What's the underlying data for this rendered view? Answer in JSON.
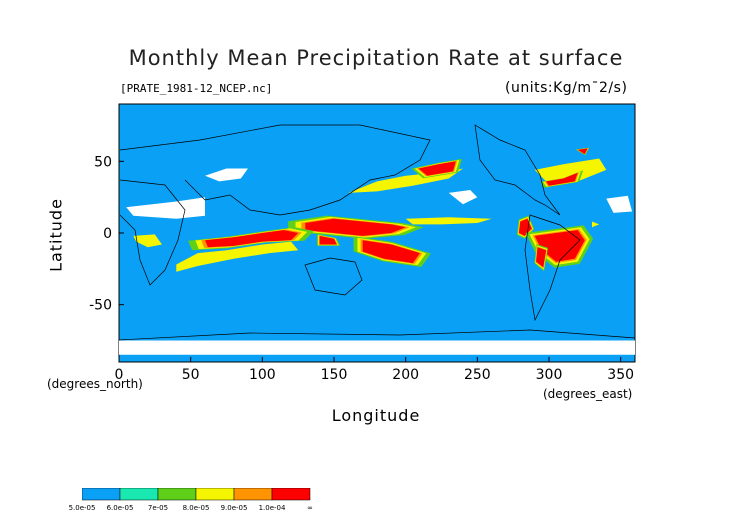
{
  "title": "Monthly Mean Precipitation Rate at surface",
  "file_label": "[PRATE_1981-12_NCEP.nc]",
  "units_label": "(units:Kg/m¯2/s)",
  "chart_data": {
    "type": "heatmap",
    "title": "Monthly Mean Precipitation Rate at surface",
    "xlabel": "Longitude",
    "ylabel": "Latitude",
    "x_units": "(degrees_east)",
    "y_units": "(degrees_north)",
    "xlim": [
      0,
      360
    ],
    "ylim": [
      -90,
      90
    ],
    "x_ticks": [
      "0",
      "50",
      "100",
      "150",
      "200",
      "250",
      "300",
      "350"
    ],
    "y_ticks": [
      "50",
      "0",
      "-50"
    ],
    "legend": {
      "labels": [
        "5.0e-05",
        "6.0e-05",
        "7e-05",
        "8.0e-05",
        "9.0e-05",
        "1.0e-04",
        "∞"
      ],
      "colors": [
        "#0aa0f5",
        "#19e8b0",
        "#5ed01a",
        "#f5f500",
        "#ff9400",
        "#ff0000"
      ]
    },
    "regions": [
      {
        "level": 5,
        "points": [
          [
            130,
            7
          ],
          [
            150,
            10
          ],
          [
            170,
            8
          ],
          [
            190,
            6
          ],
          [
            200,
            4
          ],
          [
            190,
            0
          ],
          [
            170,
            -2
          ],
          [
            150,
            0
          ],
          [
            130,
            2
          ]
        ]
      },
      {
        "level": 5,
        "points": [
          [
            170,
            -5
          ],
          [
            190,
            -8
          ],
          [
            210,
            -14
          ],
          [
            205,
            -21
          ],
          [
            185,
            -18
          ],
          [
            170,
            -13
          ]
        ]
      },
      {
        "level": 5,
        "points": [
          [
            60,
            -5
          ],
          [
            80,
            -3
          ],
          [
            100,
            0
          ],
          [
            115,
            2
          ],
          [
            125,
            0
          ],
          [
            120,
            -5
          ],
          [
            100,
            -6
          ],
          [
            80,
            -9
          ],
          [
            62,
            -10
          ]
        ]
      },
      {
        "level": 5,
        "points": [
          [
            140,
            -2
          ],
          [
            150,
            -4
          ],
          [
            152,
            -8
          ],
          [
            140,
            -8
          ]
        ]
      },
      {
        "level": 5,
        "points": [
          [
            280,
            8
          ],
          [
            285,
            10
          ],
          [
            288,
            3
          ],
          [
            283,
            -2
          ],
          [
            279,
            0
          ]
        ]
      },
      {
        "level": 5,
        "points": [
          [
            290,
            -2
          ],
          [
            305,
            0
          ],
          [
            320,
            2
          ],
          [
            325,
            -5
          ],
          [
            318,
            -18
          ],
          [
            305,
            -20
          ],
          [
            295,
            -12
          ]
        ]
      },
      {
        "level": 5,
        "points": [
          [
            292,
            -10
          ],
          [
            298,
            -12
          ],
          [
            296,
            -24
          ],
          [
            291,
            -20
          ]
        ]
      },
      {
        "level": 5,
        "points": [
          [
            209,
            45
          ],
          [
            223,
            48
          ],
          [
            235,
            50
          ],
          [
            233,
            43
          ],
          [
            215,
            40
          ]
        ]
      },
      {
        "level": 5,
        "points": [
          [
            298,
            36
          ],
          [
            310,
            38
          ],
          [
            320,
            42
          ],
          [
            318,
            36
          ],
          [
            300,
            33
          ]
        ]
      },
      {
        "level": 5,
        "points": [
          [
            320,
            58
          ],
          [
            327,
            59
          ],
          [
            325,
            55
          ]
        ]
      },
      {
        "level": 3,
        "points": [
          [
            40,
            -22
          ],
          [
            55,
            -14
          ],
          [
            75,
            -12
          ],
          [
            100,
            -8
          ],
          [
            120,
            -6
          ],
          [
            125,
            -12
          ],
          [
            105,
            -14
          ],
          [
            80,
            -18
          ],
          [
            55,
            -23
          ],
          [
            40,
            -27
          ]
        ]
      },
      {
        "level": 3,
        "points": [
          [
            160,
            28
          ],
          [
            180,
            36
          ],
          [
            200,
            40
          ],
          [
            230,
            43
          ],
          [
            240,
            45
          ],
          [
            230,
            38
          ],
          [
            205,
            33
          ],
          [
            180,
            29
          ]
        ]
      },
      {
        "level": 3,
        "points": [
          [
            200,
            10
          ],
          [
            230,
            11
          ],
          [
            260,
            10
          ],
          [
            250,
            7
          ],
          [
            225,
            6
          ],
          [
            205,
            6
          ]
        ]
      },
      {
        "level": 3,
        "points": [
          [
            290,
            44
          ],
          [
            310,
            48
          ],
          [
            335,
            52
          ],
          [
            340,
            44
          ],
          [
            320,
            36
          ],
          [
            300,
            34
          ]
        ]
      },
      {
        "level": 3,
        "points": [
          [
            10,
            -2
          ],
          [
            25,
            -1
          ],
          [
            30,
            -8
          ],
          [
            20,
            -10
          ],
          [
            12,
            -6
          ]
        ]
      },
      {
        "level": 3,
        "points": [
          [
            330,
            8
          ],
          [
            335,
            6
          ],
          [
            330,
            4
          ]
        ]
      }
    ],
    "land_dry_regions": [
      {
        "points": [
          [
            60,
            40
          ],
          [
            75,
            45
          ],
          [
            90,
            45
          ],
          [
            85,
            38
          ],
          [
            70,
            36
          ]
        ]
      },
      {
        "points": [
          [
            5,
            18
          ],
          [
            40,
            22
          ],
          [
            60,
            25
          ],
          [
            60,
            12
          ],
          [
            40,
            10
          ],
          [
            10,
            12
          ]
        ]
      },
      {
        "points": [
          [
            230,
            28
          ],
          [
            245,
            30
          ],
          [
            250,
            25
          ],
          [
            240,
            20
          ]
        ]
      },
      {
        "points": [
          [
            340,
            24
          ],
          [
            355,
            26
          ],
          [
            358,
            15
          ],
          [
            345,
            14
          ]
        ]
      },
      {
        "points": [
          [
            0,
            -75
          ],
          [
            360,
            -75
          ],
          [
            360,
            -85
          ],
          [
            0,
            -85
          ]
        ]
      }
    ]
  }
}
